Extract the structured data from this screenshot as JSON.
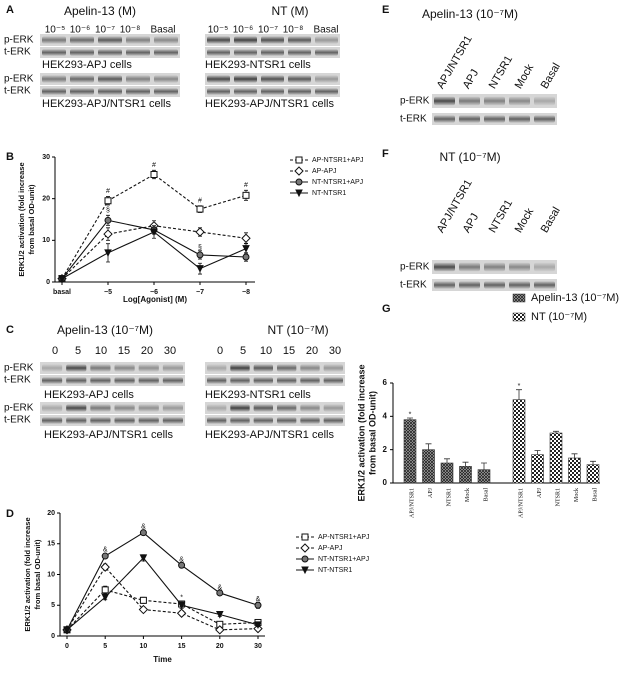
{
  "panels": [
    "A",
    "B",
    "C",
    "D",
    "E",
    "F",
    "G"
  ],
  "blots": {
    "p_erk": "p-ERK",
    "t_erk": "t-ERK",
    "A": {
      "left_title": "Apelin-13 (M)",
      "right_title": "NT (M)",
      "lanes": [
        "10⁻⁵",
        "10⁻⁶",
        "10⁻⁷",
        "10⁻⁸",
        "Basal"
      ],
      "cells_apj": "HEK293-APJ cells",
      "cells_ntsr1": "HEK293-NTSR1 cells",
      "cells_both": "HEK293-APJ/NTSR1 cells"
    },
    "C": {
      "left_title": "Apelin-13 (10⁻⁷M)",
      "right_title": "NT (10⁻⁷M)",
      "lanes": [
        "0",
        "5",
        "10",
        "15",
        "20",
        "30"
      ],
      "cells_apj": "HEK293-APJ cells",
      "cells_ntsr1": "HEK293-NTSR1 cells",
      "cells_both": "HEK293-APJ/NTSR1 cells"
    },
    "E": {
      "title": "Apelin-13 (10⁻⁷M)",
      "lanes": [
        "APJ/NTSR1",
        "APJ",
        "NTSR1",
        "Mock",
        "Basal"
      ]
    },
    "F": {
      "title": "NT (10⁻⁷M)",
      "lanes": [
        "APJ/NTSR1",
        "APJ",
        "NTSR1",
        "Mock",
        "Basal"
      ]
    }
  },
  "chart_data": [
    {
      "type": "line",
      "xlabel": "Log[Agonist] (M)",
      "ylabel": [
        "ERK1/2 activation (fold increase",
        "from basal OD-unit)"
      ],
      "categories": [
        "basal",
        "−5",
        "−6",
        "−7",
        "−8"
      ],
      "ylim": [
        0,
        30
      ],
      "yticks": [
        0,
        10,
        20,
        30
      ],
      "legend": "upper right",
      "series": [
        {
          "name": "AP-NTSR1+APJ",
          "color": "#111111",
          "marker": "square",
          "linestyle": "dashed",
          "values": [
            0.8,
            19.5,
            25.8,
            17.5,
            20.8
          ],
          "errors": [
            0.3,
            1,
            1,
            0.8,
            1.2
          ]
        },
        {
          "name": "AP-APJ",
          "color": "#111111",
          "marker": "diamond",
          "linestyle": "dashed",
          "values": [
            0.8,
            11.5,
            13.5,
            12,
            10.5
          ],
          "errors": [
            0.3,
            1.5,
            1.2,
            1,
            1.3
          ]
        },
        {
          "name": "NT-NTSR1+APJ",
          "color": "#111111",
          "marker": "circle",
          "linestyle": "solid",
          "values": [
            0.8,
            14.8,
            12.5,
            6.5,
            6
          ],
          "errors": [
            0.3,
            1.2,
            1,
            1,
            1
          ]
        },
        {
          "name": "NT-NTSR1",
          "color": "#111111",
          "marker": "triangle",
          "linestyle": "solid",
          "values": [
            0.8,
            7,
            12,
            3.2,
            8
          ],
          "errors": [
            0.3,
            2.2,
            1.5,
            1.3,
            1.3
          ]
        }
      ],
      "annotations": [
        {
          "text": "#",
          "x": "−5",
          "y": 21.8
        },
        {
          "text": "#",
          "x": "−6",
          "y": 28
        },
        {
          "text": "#",
          "x": "−7",
          "y": 19.5
        },
        {
          "text": "#",
          "x": "−8",
          "y": 23.3
        },
        {
          "text": "§",
          "x": "−5",
          "y": 17.2
        },
        {
          "text": "§",
          "x": "−7",
          "y": 8.3
        }
      ]
    },
    {
      "type": "line",
      "xlabel": "Time",
      "ylabel": [
        "ERK1/2 activation (fold increase",
        "from basal OD-unit)"
      ],
      "categories": [
        "0",
        "5",
        "10",
        "15",
        "20",
        "30"
      ],
      "ylim": [
        0,
        20
      ],
      "yticks": [
        0,
        5,
        10,
        15,
        20
      ],
      "legend": "upper right",
      "series": [
        {
          "name": "AP-NTSR1+APJ",
          "color": "#111111",
          "marker": "square",
          "linestyle": "dashed",
          "values": [
            1,
            7.5,
            5.8,
            5.2,
            1.9,
            2.2
          ],
          "errors": [
            0.2,
            0.6,
            0.5,
            0.5,
            0.3,
            0.3
          ]
        },
        {
          "name": "AP-APJ",
          "color": "#111111",
          "marker": "diamond",
          "linestyle": "dashed",
          "values": [
            1,
            11.2,
            4.3,
            3.7,
            1,
            1.2
          ],
          "errors": [
            0.2,
            0.5,
            0.4,
            0.4,
            0.2,
            0.2
          ]
        },
        {
          "name": "NT-NTSR1+APJ",
          "color": "#111111",
          "marker": "circle",
          "linestyle": "solid",
          "values": [
            1,
            13,
            16.8,
            11.5,
            7,
            5
          ],
          "errors": [
            0.2,
            0.4,
            0.4,
            0.4,
            0.4,
            0.5
          ]
        },
        {
          "name": "NT-NTSR1",
          "color": "#111111",
          "marker": "triangle",
          "linestyle": "solid",
          "values": [
            1,
            6.3,
            12.7,
            5,
            3.5,
            1.8
          ],
          "errors": [
            0.2,
            0.4,
            0.5,
            0.5,
            0.3,
            0.3
          ]
        }
      ],
      "annotations": [
        {
          "text": "&",
          "x": "5",
          "y": 14
        },
        {
          "text": "&",
          "x": "10",
          "y": 17.8
        },
        {
          "text": "&",
          "x": "15",
          "y": 12.4
        },
        {
          "text": "&",
          "x": "20",
          "y": 7.9
        },
        {
          "text": "&",
          "x": "30",
          "y": 6
        },
        {
          "text": "*",
          "x": "15",
          "y": 6.2
        }
      ]
    },
    {
      "type": "bar",
      "ylabel": [
        "ERK1/2 activation (fold increase",
        "from basal OD-unit)"
      ],
      "categories": [
        "APJ/NTSR1",
        "APJ",
        "NTSR1",
        "Mock",
        "Basal"
      ],
      "ylim": [
        0,
        6
      ],
      "yticks": [
        0,
        2,
        4,
        6
      ],
      "legend": "upper right",
      "series": [
        {
          "name": "Apelin-13 (10⁻⁷M)",
          "color": "#333333",
          "values": [
            3.8,
            2,
            1.2,
            1,
            0.8
          ],
          "errors": [
            0.1,
            0.35,
            0.25,
            0.25,
            0.4
          ]
        },
        {
          "name": "NT (10⁻⁷M)",
          "color": "#333333",
          "values": [
            5,
            1.7,
            3,
            1.5,
            1.1
          ],
          "errors": [
            0.6,
            0.25,
            0.1,
            0.25,
            0.2
          ]
        }
      ],
      "annotations": [
        {
          "text": "*",
          "x": "APJ/NTSR1",
          "y": 4.1,
          "series": "Apelin-13 (10⁻⁷M)"
        },
        {
          "text": "*",
          "x": "APJ/NTSR1",
          "y": 5.8,
          "series": "NT (10⁻⁷M)"
        }
      ]
    }
  ]
}
